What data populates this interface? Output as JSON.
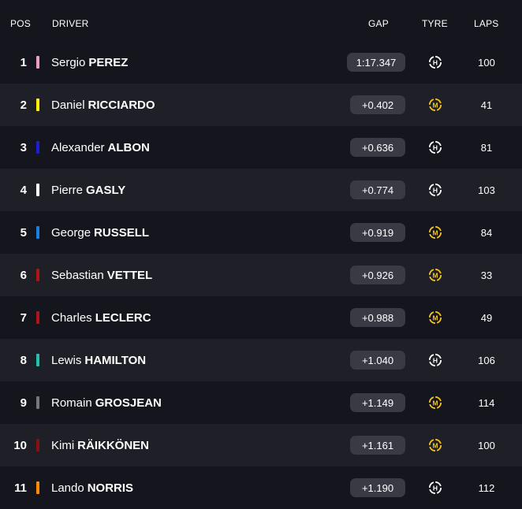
{
  "header": {
    "pos": "POS",
    "driver": "DRIVER",
    "gap": "GAP",
    "tyre": "TYRE",
    "laps": "LAPS"
  },
  "rows": [
    {
      "pos": "1",
      "first": "Sergio",
      "last": "PEREZ",
      "team_color": "#e8a0c8",
      "gap": "1:17.347",
      "tyre": "H",
      "tyre_color": "#ffffff",
      "laps": "100"
    },
    {
      "pos": "2",
      "first": "Daniel",
      "last": "RICCIARDO",
      "team_color": "#fff200",
      "gap": "+0.402",
      "tyre": "M",
      "tyre_color": "#f5c518",
      "laps": "41"
    },
    {
      "pos": "3",
      "first": "Alexander",
      "last": "ALBON",
      "team_color": "#1e1ed8",
      "gap": "+0.636",
      "tyre": "H",
      "tyre_color": "#ffffff",
      "laps": "81"
    },
    {
      "pos": "4",
      "first": "Pierre",
      "last": "GASLY",
      "team_color": "#ffffff",
      "gap": "+0.774",
      "tyre": "H",
      "tyre_color": "#ffffff",
      "laps": "103"
    },
    {
      "pos": "5",
      "first": "George",
      "last": "RUSSELL",
      "team_color": "#1a7fe0",
      "gap": "+0.919",
      "tyre": "M",
      "tyre_color": "#f5c518",
      "laps": "84"
    },
    {
      "pos": "6",
      "first": "Sebastian",
      "last": "VETTEL",
      "team_color": "#b01515",
      "gap": "+0.926",
      "tyre": "M",
      "tyre_color": "#f5c518",
      "laps": "33"
    },
    {
      "pos": "7",
      "first": "Charles",
      "last": "LECLERC",
      "team_color": "#b01515",
      "gap": "+0.988",
      "tyre": "M",
      "tyre_color": "#f5c518",
      "laps": "49"
    },
    {
      "pos": "8",
      "first": "Lewis",
      "last": "HAMILTON",
      "team_color": "#1fc2b0",
      "gap": "+1.040",
      "tyre": "H",
      "tyre_color": "#ffffff",
      "laps": "106"
    },
    {
      "pos": "9",
      "first": "Romain",
      "last": "GROSJEAN",
      "team_color": "#777777",
      "gap": "+1.149",
      "tyre": "M",
      "tyre_color": "#f5c518",
      "laps": "114"
    },
    {
      "pos": "10",
      "first": "Kimi",
      "last": "RÄIKKÖNEN",
      "team_color": "#8a1010",
      "gap": "+1.161",
      "tyre": "M",
      "tyre_color": "#f5c518",
      "laps": "100"
    },
    {
      "pos": "11",
      "first": "Lando",
      "last": "NORRIS",
      "team_color": "#ff8a00",
      "gap": "+1.190",
      "tyre": "H",
      "tyre_color": "#ffffff",
      "laps": "112"
    }
  ]
}
